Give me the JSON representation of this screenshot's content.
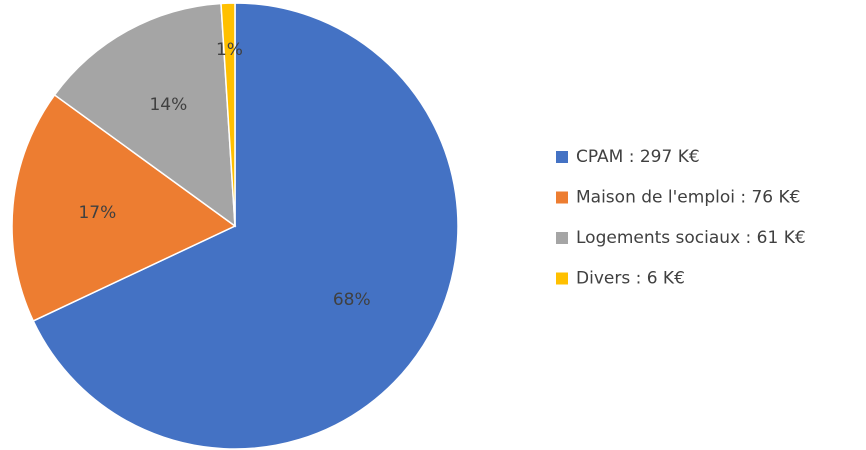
{
  "chart_data": {
    "type": "pie",
    "categories": [
      "CPAM : 297 K€",
      "Maison de l'emploi : 76 K€",
      "Logements sociaux : 61 K€",
      "Divers : 6 K€"
    ],
    "values": [
      68,
      17,
      14,
      1
    ],
    "value_labels": [
      "68%",
      "17%",
      "14%",
      "1%"
    ],
    "colors": [
      "#4472c4",
      "#ed7d31",
      "#a5a5a5",
      "#ffc000"
    ],
    "legend": "right"
  }
}
